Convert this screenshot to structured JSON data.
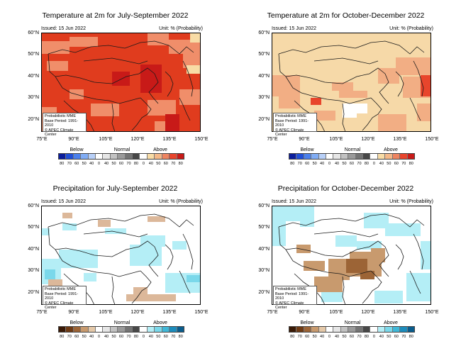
{
  "panels": [
    {
      "title": "Temperature at 2m for July-September 2022",
      "issued": "Issued: 15 Jun 2022",
      "unit": "Unit: % (Probability)",
      "lat_labels": [
        "60°N",
        "50°N",
        "40°N",
        "30°N",
        "20°N"
      ],
      "lon_labels": [
        "75°E",
        "90°E",
        "105°E",
        "120°E",
        "135°E",
        "150°E"
      ],
      "info_lines": [
        "Probabilistic MME",
        "Base Period: 1991-2010",
        "© APEC Climate Center"
      ],
      "legend": {
        "below": "Below",
        "normal": "Normal",
        "above": "Above",
        "ticks": [
          "80",
          "70",
          "60",
          "50",
          "40",
          "0",
          "40",
          "50",
          "60",
          "70",
          "80",
          "0",
          "40",
          "50",
          "60",
          "70",
          "80"
        ],
        "colors": [
          "#0c1e9c",
          "#2050d8",
          "#4a80ec",
          "#80acf4",
          "#b8d0f8",
          "#ffffff",
          "#e6e6e6",
          "#c2c2c2",
          "#9a9a9a",
          "#747474",
          "#484848",
          "#ffffff",
          "#f8dca6",
          "#f4b888",
          "#ee8460",
          "#e8452c",
          "#c81a18"
        ]
      },
      "map": {
        "base_color": "#e03c1e",
        "patch_color": "#f08e6a",
        "patch2_color": "#c81a18",
        "light_color": "#f8dca6",
        "patches": "temp-summer"
      }
    },
    {
      "title": "Temperature at 2m for October-December 2022",
      "issued": "Issued: 15 Jun 2022",
      "unit": "Unit: % (Probability)",
      "lat_labels": [
        "60°N",
        "50°N",
        "40°N",
        "30°N",
        "20°N"
      ],
      "lon_labels": [
        "75°E",
        "90°E",
        "105°E",
        "120°E",
        "135°E",
        "150°E"
      ],
      "info_lines": [
        "Probabilistic MME",
        "Base Period: 1991-2010",
        "© APEC Climate Center"
      ],
      "legend": {
        "below": "Below",
        "normal": "Normal",
        "above": "Above",
        "ticks": [
          "80",
          "70",
          "60",
          "50",
          "40",
          "0",
          "40",
          "50",
          "60",
          "70",
          "80",
          "0",
          "40",
          "50",
          "60",
          "70",
          "80"
        ],
        "colors": [
          "#0c1e9c",
          "#2050d8",
          "#4a80ec",
          "#80acf4",
          "#b8d0f8",
          "#ffffff",
          "#e6e6e6",
          "#c2c2c2",
          "#9a9a9a",
          "#747474",
          "#484848",
          "#ffffff",
          "#f8dca6",
          "#f4b888",
          "#ee8460",
          "#e8452c",
          "#c81a18"
        ]
      },
      "map": {
        "base_color": "#f6d9a8",
        "patch_color": "#f2ae84",
        "patch2_color": "#e8452c",
        "light_color": "#ffffff",
        "patches": "temp-autumn"
      }
    },
    {
      "title": "Precipitation for July-September 2022",
      "issued": "Issued: 15 Jun 2022",
      "unit": "Unit: % (Probability)",
      "lat_labels": [
        "60°N",
        "50°N",
        "40°N",
        "30°N",
        "20°N"
      ],
      "lon_labels": [
        "75°E",
        "90°E",
        "105°E",
        "120°E",
        "135°E",
        "150°E"
      ],
      "info_lines": [
        "Probabilistic MME",
        "Base Period: 1991-2010",
        "© APEC Climate Center"
      ],
      "legend": {
        "below": "Below",
        "normal": "Normal",
        "above": "Above",
        "ticks": [
          "80",
          "70",
          "60",
          "50",
          "40",
          "0",
          "40",
          "50",
          "60",
          "70",
          "80",
          "0",
          "40",
          "50",
          "60",
          "70",
          "80"
        ],
        "colors": [
          "#3a1a06",
          "#6e3a14",
          "#9c6436",
          "#c89a6e",
          "#e4c8a8",
          "#ffffff",
          "#e6e6e6",
          "#c2c2c2",
          "#9a9a9a",
          "#747474",
          "#484848",
          "#ffffff",
          "#b4eef6",
          "#7ad8ea",
          "#40b8d8",
          "#1c8cbc",
          "#0a5c8c"
        ]
      },
      "map": {
        "base_color": "#ffffff",
        "patch_color": "#b4eef6",
        "patch2_color": "#dcb89a",
        "light_color": "#7ad8ea",
        "patches": "prec-summer"
      }
    },
    {
      "title": "Precipitation for October-December 2022",
      "issued": "Issued: 15 Jun 2022",
      "unit": "Unit: % (Probability)",
      "lat_labels": [
        "60°N",
        "50°N",
        "40°N",
        "30°N",
        "20°N"
      ],
      "lon_labels": [
        "75°E",
        "90°E",
        "105°E",
        "120°E",
        "135°E",
        "150°E"
      ],
      "info_lines": [
        "Probabilistic MME",
        "Base Period: 1991-2010",
        "© APEC Climate Center"
      ],
      "legend": {
        "below": "Below",
        "normal": "Normal",
        "above": "Above",
        "ticks": [
          "80",
          "70",
          "60",
          "50",
          "40",
          "0",
          "40",
          "50",
          "60",
          "70",
          "80",
          "0",
          "40",
          "50",
          "60",
          "70",
          "80"
        ],
        "colors": [
          "#3a1a06",
          "#6e3a14",
          "#9c6436",
          "#c89a6e",
          "#e4c8a8",
          "#ffffff",
          "#e6e6e6",
          "#c2c2c2",
          "#9a9a9a",
          "#747474",
          "#484848",
          "#ffffff",
          "#b4eef6",
          "#7ad8ea",
          "#40b8d8",
          "#1c8cbc",
          "#0a5c8c"
        ]
      },
      "map": {
        "base_color": "#ffffff",
        "patch_color": "#b4eef6",
        "patch2_color": "#c89a6e",
        "light_color": "#9c6436",
        "patches": "prec-autumn"
      }
    }
  ]
}
